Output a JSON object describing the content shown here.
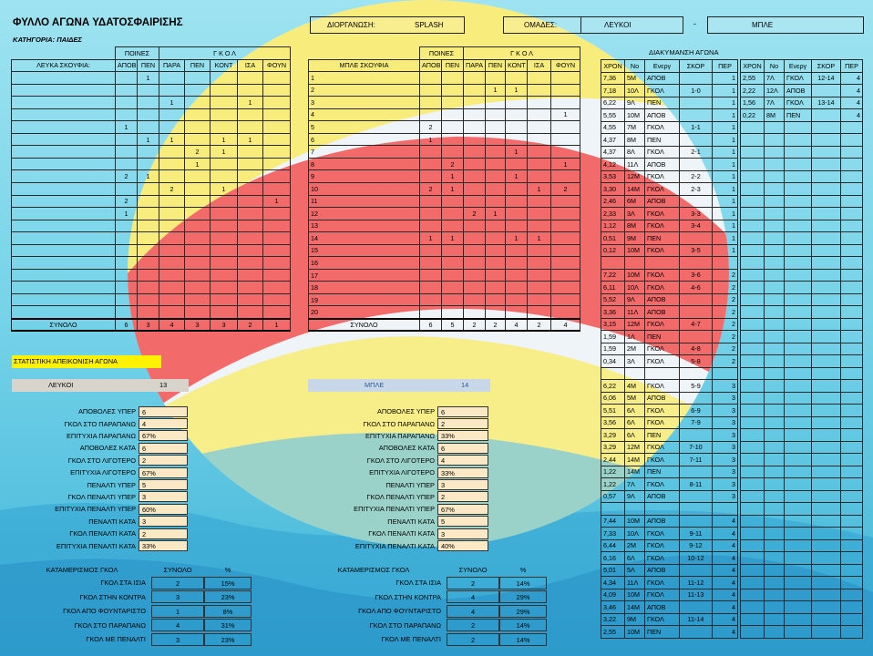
{
  "title": "ΦΥΛΛΟ ΑΓΩΝΑ ΥΔΑΤΟΣΦΑΙΡΙΣΗΣ",
  "category": "ΚΑΤΗΓΟΡΙΑ: ΠΑΙΔΕΣ",
  "organizer_label": "ΔΙΟΡΓΑΝΩΣΗ:",
  "organizer_value": "SPLASH",
  "teams_label": "ΟΜΑΔΕΣ:",
  "team_white": "ΛΕΥΚΟΙ",
  "team_dash": "-",
  "team_blue": "ΜΠΛΕ",
  "white_table": {
    "group_poines": "ΠΟΙΝΕΣ",
    "group_gkol": "Γ Κ Ο Λ",
    "col_team": "ΛΕΥΚΑ ΣΚΟΥΦΙΑ:",
    "cols": [
      "ΑΠΟΒ",
      "ΠΕΝ",
      "ΠΑΡΑ",
      "ΠΕΝ",
      "ΚΟΝΤ",
      "ΙΣΑ",
      "ΦΟΥΝ"
    ],
    "rows": [
      [
        "",
        "1",
        "",
        "",
        "",
        "",
        ""
      ],
      [
        "",
        "",
        "",
        "",
        "",
        "",
        ""
      ],
      [
        "",
        "",
        "1",
        "",
        "",
        "1",
        ""
      ],
      [
        "",
        "",
        "",
        "",
        "",
        "",
        ""
      ],
      [
        "1",
        "",
        "",
        "",
        "",
        "",
        ""
      ],
      [
        "",
        "1",
        "1",
        "",
        "1",
        "1",
        ""
      ],
      [
        "",
        "",
        "",
        "2",
        "1",
        "",
        ""
      ],
      [
        "",
        "",
        "",
        "1",
        "",
        "",
        ""
      ],
      [
        "2",
        "1",
        "",
        "",
        "",
        "",
        ""
      ],
      [
        "",
        "",
        "2",
        "",
        "1",
        "",
        ""
      ],
      [
        "2",
        "",
        "",
        "",
        "",
        "",
        "1"
      ],
      [
        "1",
        "",
        "",
        "",
        "",
        "",
        ""
      ],
      [
        "",
        "",
        "",
        "",
        "",
        "",
        ""
      ],
      [
        "",
        "",
        "",
        "",
        "",
        "",
        ""
      ],
      [
        "",
        "",
        "",
        "",
        "",
        "",
        ""
      ],
      [
        "",
        "",
        "",
        "",
        "",
        "",
        ""
      ],
      [
        "",
        "",
        "",
        "",
        "",
        "",
        ""
      ],
      [
        "",
        "",
        "",
        "",
        "",
        "",
        ""
      ],
      [
        "",
        "",
        "",
        "",
        "",
        "",
        ""
      ],
      [
        "",
        "",
        "",
        "",
        "",
        "",
        ""
      ]
    ],
    "total_label": "ΣΥΝΟΛΟ",
    "totals": [
      "6",
      "3",
      "4",
      "3",
      "3",
      "2",
      "1"
    ]
  },
  "blue_table": {
    "group_poines": "ΠΟΙΝΕΣ",
    "group_gkol": "Γ Κ Ο Λ",
    "col_team": "ΜΠΛΕ ΣΚΟΥΦΙΑ",
    "cols": [
      "ΑΠΟΒ",
      "ΠΕΝ",
      "ΠΑΡΑ",
      "ΠΕΝ",
      "ΚΟΝΤ",
      "ΙΣΑ",
      "ΦΟΥΝ"
    ],
    "numbers": [
      "1",
      "2",
      "3",
      "4",
      "5",
      "6",
      "7",
      "8",
      "9",
      "10",
      "11",
      "12",
      "13",
      "14",
      "15",
      "16",
      "17",
      "18",
      "19",
      "20"
    ],
    "rows": [
      [
        "",
        "",
        "",
        "",
        "",
        "",
        ""
      ],
      [
        "",
        "",
        "",
        "1",
        "1",
        "",
        ""
      ],
      [
        "",
        "",
        "",
        "",
        "",
        "",
        ""
      ],
      [
        "",
        "",
        "",
        "",
        "",
        "",
        "1"
      ],
      [
        "2",
        "",
        "",
        "",
        "",
        "",
        ""
      ],
      [
        "1",
        "",
        "",
        "",
        "",
        "",
        ""
      ],
      [
        "",
        "",
        "",
        "",
        "1",
        "",
        ""
      ],
      [
        "",
        "2",
        "",
        "",
        "",
        "",
        "1"
      ],
      [
        "",
        "1",
        "",
        "",
        "1",
        "",
        ""
      ],
      [
        "2",
        "1",
        "",
        "",
        "",
        "1",
        "2"
      ],
      [
        "",
        "",
        "",
        "",
        "",
        "",
        ""
      ],
      [
        "",
        "",
        "2",
        "1",
        "",
        "",
        ""
      ],
      [
        "",
        "",
        "",
        "",
        "",
        "",
        ""
      ],
      [
        "1",
        "1",
        "",
        "",
        "1",
        "1",
        ""
      ],
      [
        "",
        "",
        "",
        "",
        "",
        "",
        ""
      ],
      [
        "",
        "",
        "",
        "",
        "",
        "",
        ""
      ],
      [
        "",
        "",
        "",
        "",
        "",
        "",
        ""
      ],
      [
        "",
        "",
        "",
        "",
        "",
        "",
        ""
      ],
      [
        "",
        "",
        "",
        "",
        "",
        "",
        ""
      ],
      [
        "",
        "",
        "",
        "",
        "",
        "",
        ""
      ]
    ],
    "total_label": "ΣΥΝΟΛΟ",
    "totals": [
      "6",
      "5",
      "2",
      "2",
      "4",
      "2",
      "4"
    ]
  },
  "progress": {
    "title": "ΔΙΑΚΥΜΑΝΣΗ ΑΓΩΝΑ",
    "cols": [
      "ΧΡΟΝ",
      "Νο",
      "Ενεργ",
      "ΣΚΟΡ",
      "ΠΕΡ"
    ],
    "left": [
      [
        "7,36",
        "5Μ",
        "ΑΠΟΒ",
        "",
        "1"
      ],
      [
        "7,18",
        "10Λ",
        "ΓΚΟΛ",
        "1-0",
        "1"
      ],
      [
        "6,22",
        "9Λ",
        "ΠΕΝ",
        "",
        "1"
      ],
      [
        "5,55",
        "10Μ",
        "ΑΠΟΒ",
        "",
        "1"
      ],
      [
        "4,55",
        "7Μ",
        "ΓΚΟΛ",
        "1-1",
        "1"
      ],
      [
        "4,37",
        "8Μ",
        "ΠΕΝ",
        "",
        "1"
      ],
      [
        "4,37",
        "8Λ",
        "ΓΚΟΛ",
        "2-1",
        "1"
      ],
      [
        "4,12",
        "11Λ",
        "ΑΠΟΒ",
        "",
        "1"
      ],
      [
        "3,53",
        "12Μ",
        "ΓΚΟΛ",
        "2-2",
        "1"
      ],
      [
        "3,30",
        "14Μ",
        "ΓΚΟΛ",
        "2-3",
        "1"
      ],
      [
        "2,46",
        "6Μ",
        "ΑΠΟΒ",
        "",
        "1"
      ],
      [
        "2,33",
        "3Λ",
        "ΓΚΟΛ",
        "3-3",
        "1"
      ],
      [
        "1,12",
        "8Μ",
        "ΓΚΟΛ",
        "3-4",
        "1"
      ],
      [
        "0,51",
        "9Μ",
        "ΠΕΝ",
        "",
        "1"
      ],
      [
        "0,12",
        "10Μ",
        "ΓΚΟΛ",
        "3-5",
        "1"
      ],
      [
        "",
        "",
        "",
        "",
        ""
      ],
      [
        "7,22",
        "10Μ",
        "ΓΚΟΛ",
        "3-6",
        "2"
      ],
      [
        "6,11",
        "10Λ",
        "ΓΚΟΛ",
        "4-6",
        "2"
      ],
      [
        "5,52",
        "9Λ",
        "ΑΠΟΒ",
        "",
        "2"
      ],
      [
        "3,36",
        "11Λ",
        "ΑΠΟΒ",
        "",
        "2"
      ],
      [
        "3,15",
        "12Μ",
        "ΓΚΟΛ",
        "4-7",
        "2"
      ],
      [
        "1,59",
        "1Λ",
        "ΠΕΝ",
        "",
        "2"
      ],
      [
        "1,59",
        "2Μ",
        "ΓΚΟΛ",
        "4-8",
        "2"
      ],
      [
        "0,34",
        "3Λ",
        "ΓΚΟΛ",
        "5-8",
        "2"
      ],
      [
        "",
        "",
        "",
        "",
        ""
      ],
      [
        "6,22",
        "4Μ",
        "ΓΚΟΛ",
        "5-9",
        "3"
      ],
      [
        "6,06",
        "5Μ",
        "ΑΠΟΒ",
        "",
        "3"
      ],
      [
        "5,51",
        "6Λ",
        "ΓΚΟΛ",
        "6-9",
        "3"
      ],
      [
        "3,56",
        "6Λ",
        "ΓΚΟΛ",
        "7-9",
        "3"
      ],
      [
        "3,29",
        "6Λ",
        "ΠΕΝ",
        "",
        "3"
      ],
      [
        "3,29",
        "12Μ",
        "ΓΚΟΛ",
        "7-10",
        "3"
      ],
      [
        "2,44",
        "14Μ",
        "ΓΚΟΛ",
        "7-11",
        "3"
      ],
      [
        "1,22",
        "14Μ",
        "ΠΕΝ",
        "",
        "3"
      ],
      [
        "1,22",
        "7Λ",
        "ΓΚΟΛ",
        "8-11",
        "3"
      ],
      [
        "0,57",
        "9Λ",
        "ΑΠΟΒ",
        "",
        "3"
      ],
      [
        "",
        "",
        "",
        "",
        ""
      ],
      [
        "7,44",
        "10Μ",
        "ΑΠΟΒ",
        "",
        "4"
      ],
      [
        "7,33",
        "10Λ",
        "ΓΚΟΛ",
        "9-11",
        "4"
      ],
      [
        "6,44",
        "2Μ",
        "ΓΚΟΛ",
        "9-12",
        "4"
      ],
      [
        "6,16",
        "6Λ",
        "ΓΚΟΛ",
        "10-12",
        "4"
      ],
      [
        "5,01",
        "5Λ",
        "ΑΠΟΒ",
        "",
        "4"
      ],
      [
        "4,34",
        "11Λ",
        "ΓΚΟΛ",
        "11-12",
        "4"
      ],
      [
        "4,09",
        "10Μ",
        "ΓΚΟΛ",
        "11-13",
        "4"
      ],
      [
        "3,46",
        "14Μ",
        "ΑΠΟΒ",
        "",
        "4"
      ],
      [
        "3,22",
        "9Μ",
        "ΓΚΟΛ",
        "11-14",
        "4"
      ],
      [
        "2,55",
        "10Μ",
        "ΠΕΝ",
        "",
        "4"
      ]
    ],
    "right": [
      [
        "2,55",
        "7Λ",
        "ΓΚΟΛ",
        "12-14",
        "4"
      ],
      [
        "2,22",
        "12Λ",
        "ΑΠΟΒ",
        "",
        "4"
      ],
      [
        "1,56",
        "7Λ",
        "ΓΚΟΛ",
        "13-14",
        "4"
      ],
      [
        "0,22",
        "8Μ",
        "ΠΕΝ",
        "",
        "4"
      ]
    ]
  },
  "stats": {
    "heading": "ΣΤΑΤΙΣΤΙΚΗ ΑΠΕΙΚΟΝΙΣΗ ΑΓΩΝΑ",
    "white_name": "ΛΕΥΚΟΙ",
    "white_score": "13",
    "blue_name": "ΜΠΛΕ",
    "blue_score": "14",
    "white_rows": [
      [
        "ΑΠΟΒΟΛΕΣ ΥΠΕΡ",
        "6"
      ],
      [
        "ΓΚΟΛ ΣΤΟ ΠΑΡΑΠΑΝΩ",
        "4"
      ],
      [
        "ΕΠΙΤΥΧΙΑ ΠΑΡΑΠΑΝΩ",
        "67%"
      ],
      [
        "ΑΠΟΒΟΛΕΣ ΚΑΤΑ",
        "6"
      ],
      [
        "ΓΚΟΛ ΣΤΟ ΛΙΓΟΤΕΡΟ",
        "2"
      ],
      [
        "ΕΠΙΤΥΧΙΑ ΛΙΓΟΤΕΡΟ",
        "67%"
      ],
      [
        "ΠΕΝΑΛΤΙ ΥΠΕΡ",
        "5"
      ],
      [
        "ΓΚΟΛ ΠΕΝΑΛΤΙ ΥΠΕΡ",
        "3"
      ],
      [
        "ΕΠΙΤΥΧΙΑ ΠΕΝΑΛΤΙ ΥΠΕΡ",
        "60%"
      ],
      [
        "ΠΕΝΑΛΤΙ ΚΑΤΑ",
        "3"
      ],
      [
        "ΓΚΟΛ ΠΕΝΑΛΤΙ ΚΑΤΑ",
        "2"
      ],
      [
        "ΕΠΙΤΥΧΙΑ ΠΕΝΑΛΤΙ ΚΑΤΑ",
        "33%"
      ]
    ],
    "blue_rows": [
      [
        "ΑΠΟΒΟΛΕΣ ΥΠΕΡ",
        "6"
      ],
      [
        "ΓΚΟΛ ΣΤΟ ΠΑΡΑΠΑΝΩ",
        "2"
      ],
      [
        "ΕΠΙΤΥΧΙΑ ΠΑΡΑΠΑΝΩ",
        "33%"
      ],
      [
        "ΑΠΟΒΟΛΕΣ ΚΑΤΑ",
        "6"
      ],
      [
        "ΓΚΟΛ ΣΤΟ ΛΙΓΟΤΕΡΟ",
        "4"
      ],
      [
        "ΕΠΙΤΥΧΙΑ ΛΙΓΟΤΕΡΟ",
        "33%"
      ],
      [
        "ΠΕΝΑΛΤΙ ΥΠΕΡ",
        "3"
      ],
      [
        "ΓΚΟΛ ΠΕΝΑΛΤΙ ΥΠΕΡ",
        "2"
      ],
      [
        "ΕΠΙΤΥΧΙΑ ΠΕΝΑΛΤΙ ΥΠΕΡ",
        "67%"
      ],
      [
        "ΠΕΝΑΛΤΙ ΚΑΤΑ",
        "5"
      ],
      [
        "ΓΚΟΛ ΠΕΝΑΛΤΙ ΚΑΤΑ",
        "3"
      ],
      [
        "ΕΠΙΤΥΧΙΑ ΠΕΝΑΛΤΙ ΚΑΤΑ",
        "40%"
      ]
    ]
  },
  "distribution": {
    "white_heading": [
      "ΚΑΤΑΜΕΡΙΣΜΟΣ ΓΚΟΛ",
      "ΣΥΝΟΛΟ",
      "%"
    ],
    "blue_heading": [
      "ΚΑΤΑΜΕΡΙΣΜΟΣ ΓΚΟΛ",
      "ΣΥΝΟΛΟ",
      "%"
    ],
    "white_rows": [
      [
        "ΓΚΟΛ ΣΤΑ ΙΣΙΑ",
        "2",
        "15%"
      ],
      [
        "ΓΚΟΛ ΣΤΗΝ ΚΟΝΤΡΑ",
        "3",
        "23%"
      ],
      [
        "ΓΚΟΛ ΑΠΟ ΦΟΥΝΤΑΡΙΣΤΟ",
        "1",
        "8%"
      ],
      [
        "ΓΚΟΛ ΣΤΟ ΠΑΡΑΠΑΝΩ",
        "4",
        "31%"
      ],
      [
        "ΓΚΟΛ ΜΕ ΠΕΝΑΛΤΙ",
        "3",
        "23%"
      ]
    ],
    "blue_rows": [
      [
        "ΓΚΟΛ ΣΤΑ ΙΣΙΑ",
        "2",
        "14%"
      ],
      [
        "ΓΚΟΛ ΣΤΗΝ ΚΟΝΤΡΑ",
        "4",
        "29%"
      ],
      [
        "ΓΚΟΛ ΑΠΟ ΦΟΥΝΤΑΡΙΣΤΟ",
        "4",
        "29%"
      ],
      [
        "ΓΚΟΛ ΣΤΟ ΠΑΡΑΠΑΝΩ",
        "2",
        "14%"
      ],
      [
        "ΓΚΟΛ ΜΕ ΠΕΝΑΛΤΙ",
        "2",
        "14%"
      ]
    ]
  },
  "colors": {
    "background": "#7fd6ea",
    "ball_red": "#f26a6a",
    "ball_yellow": "#f7ec7c",
    "ball_white": "#eef4f7",
    "heading_yellow": "#fff200",
    "white_score_bg": "#d8d4cc",
    "blue_score_bg": "#c8d8e8",
    "value_bg": "#fbe8c4"
  }
}
